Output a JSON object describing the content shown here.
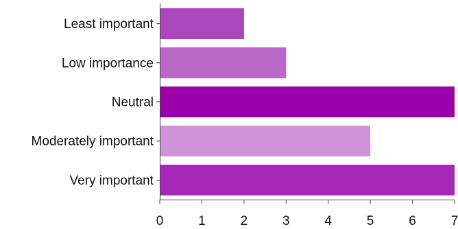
{
  "chart_data": {
    "type": "bar",
    "orientation": "horizontal",
    "categories": [
      "Least important",
      "Low importance",
      "Neutral",
      "Moderately important",
      "Very important"
    ],
    "values": [
      2,
      3,
      7,
      5,
      7
    ],
    "bar_colors": [
      "#ab47bc",
      "#ba68c8",
      "#9c00a8",
      "#ce93d8",
      "#a626b8"
    ],
    "xlim": [
      0,
      7
    ],
    "xticks": [
      "0",
      "1",
      "2",
      "3",
      "4",
      "5",
      "6",
      "7"
    ],
    "title": "",
    "xlabel": "",
    "ylabel": "",
    "grid": false,
    "legend": "none",
    "colors": {
      "text": "#111111",
      "axis": "#444444"
    }
  }
}
